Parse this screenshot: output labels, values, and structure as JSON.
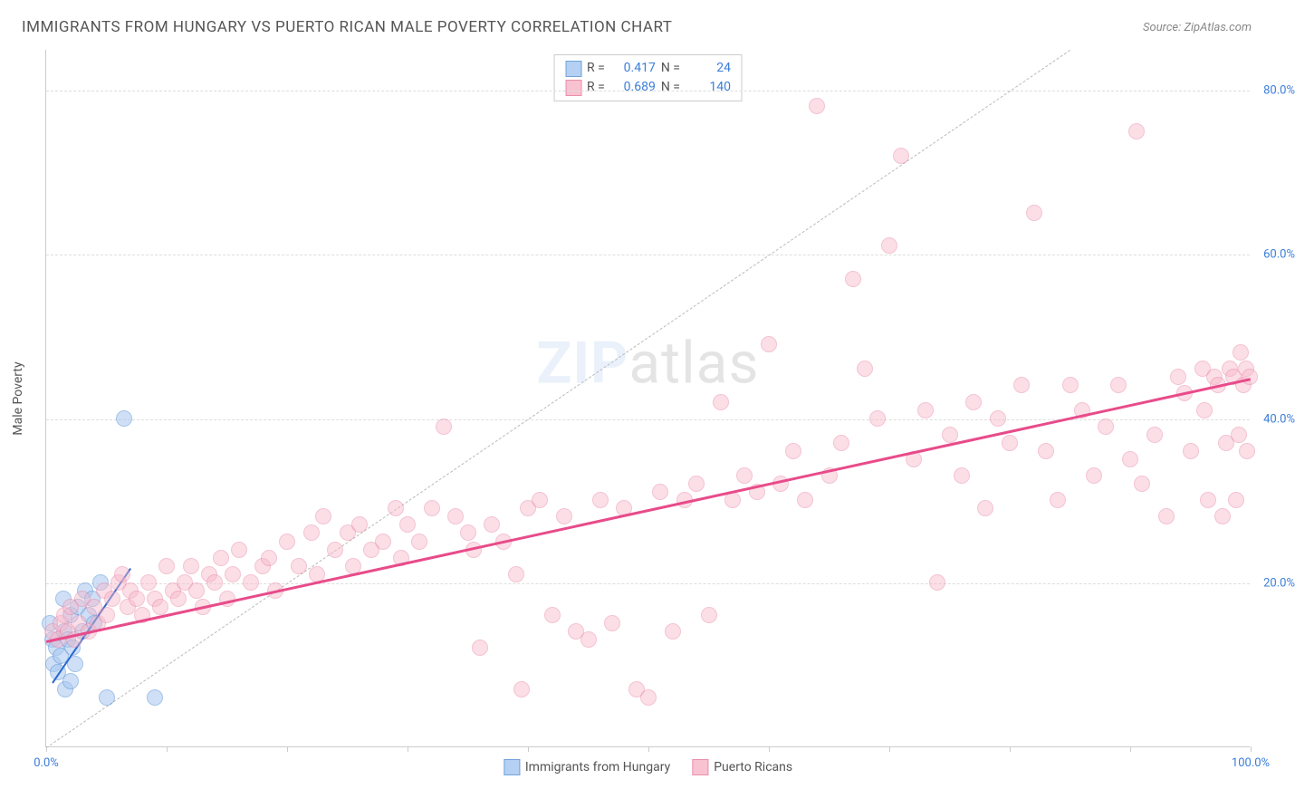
{
  "title": "IMMIGRANTS FROM HUNGARY VS PUERTO RICAN MALE POVERTY CORRELATION CHART",
  "source_label": "Source:",
  "source_value": "ZipAtlas.com",
  "y_axis_label": "Male Poverty",
  "watermark_zip": "ZIP",
  "watermark_atlas": "atlas",
  "chart": {
    "type": "scatter",
    "xlim": [
      0,
      100
    ],
    "ylim": [
      0,
      85
    ],
    "x_ticks": [
      0,
      10,
      20,
      30,
      40,
      50,
      60,
      70,
      80,
      90,
      100
    ],
    "x_tick_labels_shown": {
      "0": "0.0%",
      "100": "100.0%"
    },
    "y_ticks": [
      20,
      40,
      60,
      80
    ],
    "y_tick_labels": [
      "20.0%",
      "40.0%",
      "60.0%",
      "80.0%"
    ],
    "grid_color": "#dddddd",
    "background_color": "#ffffff",
    "point_radius": 9,
    "point_border_width": 1.5,
    "diagonal": {
      "visible": true,
      "dash": "4,4",
      "color": "#bbbbbb"
    }
  },
  "series": [
    {
      "key": "hungary",
      "label": "Immigrants from Hungary",
      "fill_color": "#a8c8f0",
      "border_color": "#5b93d6",
      "fill_opacity": 0.55,
      "R": "0.417",
      "N": "24",
      "trend": {
        "x1": 0.5,
        "y1": 8,
        "x2": 7,
        "y2": 22,
        "color": "#2b6bd1",
        "width": 2
      },
      "points": [
        [
          0.3,
          15
        ],
        [
          0.5,
          13
        ],
        [
          0.6,
          10
        ],
        [
          0.8,
          12
        ],
        [
          1.0,
          9
        ],
        [
          1.2,
          11
        ],
        [
          1.4,
          18
        ],
        [
          1.5,
          14
        ],
        [
          1.6,
          7
        ],
        [
          1.8,
          13
        ],
        [
          2.0,
          16
        ],
        [
          2.0,
          8
        ],
        [
          2.2,
          12
        ],
        [
          2.4,
          10
        ],
        [
          2.6,
          17
        ],
        [
          3.0,
          14
        ],
        [
          3.2,
          19
        ],
        [
          3.5,
          16
        ],
        [
          3.8,
          18
        ],
        [
          4.0,
          15
        ],
        [
          4.5,
          20
        ],
        [
          5.0,
          6
        ],
        [
          6.5,
          40
        ],
        [
          9.0,
          6
        ]
      ]
    },
    {
      "key": "puerto_rican",
      "label": "Puerto Ricans",
      "fill_color": "#f7b8ca",
      "border_color": "#e87ba0",
      "fill_opacity": 0.45,
      "R": "0.689",
      "N": "140",
      "trend": {
        "x1": 0,
        "y1": 13,
        "x2": 100,
        "y2": 45,
        "color": "#e84b8a",
        "width": 2.5
      },
      "points": [
        [
          0.5,
          14
        ],
        [
          1,
          13
        ],
        [
          1.2,
          15
        ],
        [
          1.5,
          16
        ],
        [
          1.8,
          14
        ],
        [
          2,
          17
        ],
        [
          2.3,
          13
        ],
        [
          2.7,
          15
        ],
        [
          3,
          18
        ],
        [
          3.5,
          14
        ],
        [
          4,
          17
        ],
        [
          4.3,
          15
        ],
        [
          4.8,
          19
        ],
        [
          5,
          16
        ],
        [
          5.5,
          18
        ],
        [
          6,
          20
        ],
        [
          6.3,
          21
        ],
        [
          6.8,
          17
        ],
        [
          7,
          19
        ],
        [
          7.5,
          18
        ],
        [
          8,
          16
        ],
        [
          8.5,
          20
        ],
        [
          9,
          18
        ],
        [
          9.5,
          17
        ],
        [
          10,
          22
        ],
        [
          10.5,
          19
        ],
        [
          11,
          18
        ],
        [
          11.5,
          20
        ],
        [
          12,
          22
        ],
        [
          12.5,
          19
        ],
        [
          13,
          17
        ],
        [
          13.5,
          21
        ],
        [
          14,
          20
        ],
        [
          14.5,
          23
        ],
        [
          15,
          18
        ],
        [
          15.5,
          21
        ],
        [
          16,
          24
        ],
        [
          17,
          20
        ],
        [
          18,
          22
        ],
        [
          18.5,
          23
        ],
        [
          19,
          19
        ],
        [
          20,
          25
        ],
        [
          21,
          22
        ],
        [
          22,
          26
        ],
        [
          22.5,
          21
        ],
        [
          23,
          28
        ],
        [
          24,
          24
        ],
        [
          25,
          26
        ],
        [
          25.5,
          22
        ],
        [
          26,
          27
        ],
        [
          27,
          24
        ],
        [
          28,
          25
        ],
        [
          29,
          29
        ],
        [
          29.5,
          23
        ],
        [
          30,
          27
        ],
        [
          31,
          25
        ],
        [
          32,
          29
        ],
        [
          33,
          39
        ],
        [
          34,
          28
        ],
        [
          35,
          26
        ],
        [
          35.5,
          24
        ],
        [
          36,
          12
        ],
        [
          37,
          27
        ],
        [
          38,
          25
        ],
        [
          39,
          21
        ],
        [
          39.5,
          7
        ],
        [
          40,
          29
        ],
        [
          41,
          30
        ],
        [
          42,
          16
        ],
        [
          43,
          28
        ],
        [
          44,
          14
        ],
        [
          45,
          13
        ],
        [
          46,
          30
        ],
        [
          47,
          15
        ],
        [
          48,
          29
        ],
        [
          49,
          7
        ],
        [
          50,
          6
        ],
        [
          51,
          31
        ],
        [
          52,
          14
        ],
        [
          53,
          30
        ],
        [
          54,
          32
        ],
        [
          55,
          16
        ],
        [
          56,
          42
        ],
        [
          57,
          30
        ],
        [
          58,
          33
        ],
        [
          59,
          31
        ],
        [
          60,
          49
        ],
        [
          61,
          32
        ],
        [
          62,
          36
        ],
        [
          63,
          30
        ],
        [
          64,
          78
        ],
        [
          65,
          33
        ],
        [
          66,
          37
        ],
        [
          67,
          57
        ],
        [
          68,
          46
        ],
        [
          69,
          40
        ],
        [
          70,
          61
        ],
        [
          71,
          72
        ],
        [
          72,
          35
        ],
        [
          73,
          41
        ],
        [
          74,
          20
        ],
        [
          75,
          38
        ],
        [
          76,
          33
        ],
        [
          77,
          42
        ],
        [
          78,
          29
        ],
        [
          79,
          40
        ],
        [
          80,
          37
        ],
        [
          81,
          44
        ],
        [
          82,
          65
        ],
        [
          83,
          36
        ],
        [
          84,
          30
        ],
        [
          85,
          44
        ],
        [
          86,
          41
        ],
        [
          87,
          33
        ],
        [
          88,
          39
        ],
        [
          89,
          44
        ],
        [
          90,
          35
        ],
        [
          90.5,
          75
        ],
        [
          91,
          32
        ],
        [
          92,
          38
        ],
        [
          93,
          28
        ],
        [
          94,
          45
        ],
        [
          94.5,
          43
        ],
        [
          95,
          36
        ],
        [
          96,
          46
        ],
        [
          96.5,
          30
        ],
        [
          97,
          45
        ],
        [
          97.3,
          44
        ],
        [
          98,
          37
        ],
        [
          98.3,
          46
        ],
        [
          98.6,
          45
        ],
        [
          99,
          38
        ],
        [
          99.2,
          48
        ],
        [
          99.4,
          44
        ],
        [
          99.6,
          46
        ],
        [
          99.7,
          36
        ],
        [
          99.9,
          45
        ],
        [
          98.8,
          30
        ],
        [
          97.7,
          28
        ],
        [
          96.2,
          41
        ]
      ]
    }
  ],
  "stat_legend": {
    "R_label": "R =",
    "N_label": "N ="
  },
  "bottom_legend_title": ""
}
